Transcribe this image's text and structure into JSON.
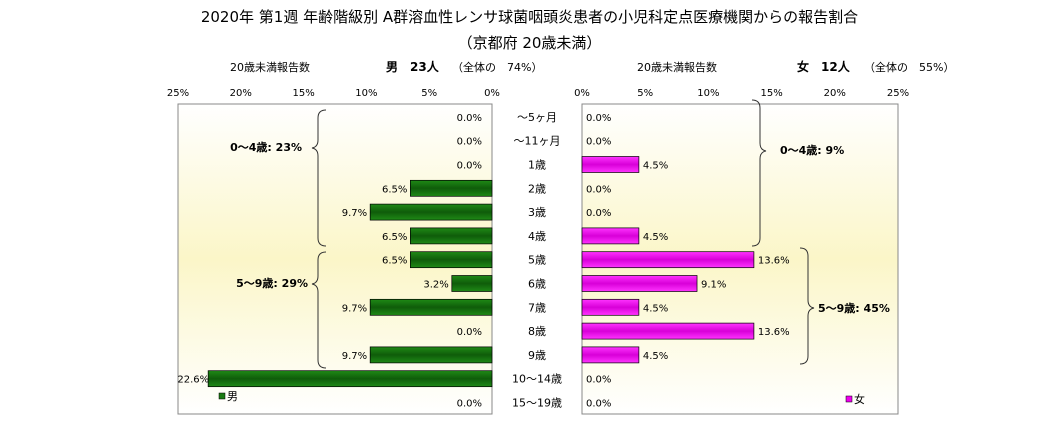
{
  "chart_data": {
    "type": "bar",
    "title": "2020年 第1週 年齢階級別 A群溶血性レンサ球菌咽頭炎患者の小児科定点医療機関からの報告割合",
    "subtitle": "（京都府 20歳未満）",
    "categories": [
      "～5ヶ月",
      "～11ヶ月",
      "1歳",
      "2歳",
      "3歳",
      "4歳",
      "5歳",
      "6歳",
      "7歳",
      "8歳",
      "9歳",
      "10～14歳",
      "15～19歳"
    ],
    "male": {
      "header": "20歳未満報告数",
      "summary_label": "男",
      "summary_count": "23人",
      "summary_share": "（全体の　74%）",
      "axis_ticks": [
        "25%",
        "20%",
        "15%",
        "10%",
        "5%",
        "0%"
      ],
      "xlim": [
        0,
        25
      ],
      "series": [
        {
          "name": "男",
          "values": [
            0.0,
            0.0,
            0.0,
            6.5,
            9.7,
            6.5,
            6.5,
            3.2,
            9.7,
            0.0,
            9.7,
            22.6,
            0.0
          ]
        }
      ],
      "value_labels": [
        "0.0%",
        "0.0%",
        "0.0%",
        "6.5%",
        "9.7%",
        "6.5%",
        "6.5%",
        "3.2%",
        "9.7%",
        "0.0%",
        "9.7%",
        "22.6%",
        "0.0%"
      ],
      "legend": "男",
      "legend_placement": "bottom-left",
      "group_labels": [
        "0～4歳: 23%",
        "5～9歳: 29%"
      ],
      "color": "#1a7a12"
    },
    "female": {
      "header": "20歳未満報告数",
      "summary_label": "女",
      "summary_count": "12人",
      "summary_share": "（全体の　55%）",
      "axis_ticks": [
        "0%",
        "5%",
        "10%",
        "15%",
        "20%",
        "25%"
      ],
      "xlim": [
        0,
        25
      ],
      "series": [
        {
          "name": "女",
          "values": [
            0.0,
            0.0,
            4.5,
            0.0,
            0.0,
            4.5,
            13.6,
            9.1,
            4.5,
            13.6,
            4.5,
            0.0,
            0.0
          ]
        }
      ],
      "value_labels": [
        "0.0%",
        "0.0%",
        "4.5%",
        "0.0%",
        "0.0%",
        "4.5%",
        "13.6%",
        "9.1%",
        "4.5%",
        "13.6%",
        "4.5%",
        "0.0%",
        "0.0%"
      ],
      "legend": "女",
      "legend_placement": "bottom-right",
      "group_labels": [
        "0～4歳: 9%",
        "5～9歳: 45%"
      ],
      "color": "#ee00ee"
    }
  }
}
